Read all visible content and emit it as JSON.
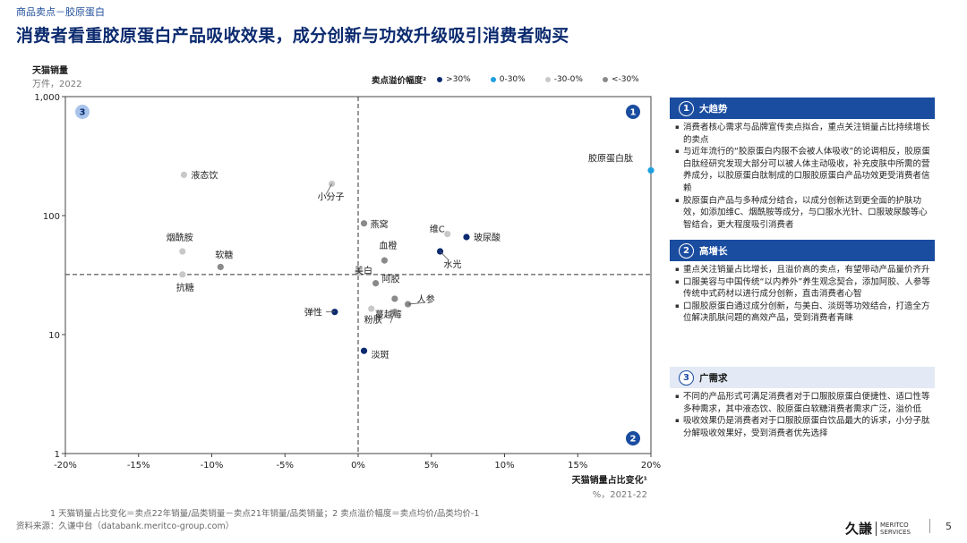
{
  "breadcrumb": "商品卖点－胶原蛋白",
  "title": "消费者看重胶原蛋白产品吸收效果，成分创新与功效升级吸引消费者购买",
  "colors": {
    ">30%": "#0b2a6f",
    "0-30%": "#1ea0e0",
    "-30-0%": "#c8c8c8",
    "<-30%": "#8a8a8a"
  },
  "chart_data": {
    "type": "scatter",
    "ylabel": "天猫销量",
    "yunit": "万件，2022",
    "xlabel": "天猫销量占比变化¹",
    "xunit": "%，2021-22",
    "xlim": [
      -20,
      20
    ],
    "ylim": [
      1,
      1000
    ],
    "yscale": "log",
    "x_ticks": [
      "-20%",
      "-15%",
      "-10%",
      "-5%",
      "0%",
      "5%",
      "10%",
      "15%",
      "20%"
    ],
    "x_tick_values": [
      -20,
      -15,
      -10,
      -5,
      0,
      5,
      10,
      15,
      20
    ],
    "y_ticks": [
      "1",
      "10",
      "100",
      "1,000"
    ],
    "y_tick_values": [
      1,
      10,
      100,
      1000
    ],
    "divider_x": 0,
    "divider_y": 32,
    "legend_title": "卖点溢价幅度²",
    "legend": [
      ">30%",
      "0-30%",
      "-30-0%",
      "<-30%"
    ],
    "quadrants": [
      "1",
      "2",
      "3"
    ],
    "points": [
      {
        "label": "胶原蛋白肽",
        "x": 20.0,
        "y": 240,
        "cat": "0-30%"
      },
      {
        "label": "液态饮",
        "x": -11.9,
        "y": 220,
        "cat": "-30-0%"
      },
      {
        "label": "小分子",
        "x": -1.8,
        "y": 185,
        "cat": "-30-0%"
      },
      {
        "label": "燕窝",
        "x": 0.4,
        "y": 86,
        "cat": "<-30%"
      },
      {
        "label": "维C",
        "x": 6.1,
        "y": 70,
        "cat": "-30-0%"
      },
      {
        "label": "玻尿酸",
        "x": 7.4,
        "y": 66,
        "cat": ">30%"
      },
      {
        "label": "烟酰胺",
        "x": -12.0,
        "y": 50,
        "cat": "-30-0%"
      },
      {
        "label": "血橙",
        "x": 1.8,
        "y": 42,
        "cat": "<-30%"
      },
      {
        "label": "水光",
        "x": 5.6,
        "y": 50,
        "cat": ">30%"
      },
      {
        "label": "软糖",
        "x": -9.4,
        "y": 37,
        "cat": "<-30%"
      },
      {
        "label": "抗糖",
        "x": -12.0,
        "y": 32,
        "cat": "-30-0%"
      },
      {
        "label": "美白",
        "x": 0.0,
        "y": 33,
        "cat": "-30-0%"
      },
      {
        "label": "阿胶",
        "x": 1.2,
        "y": 27,
        "cat": "<-30%"
      },
      {
        "label": "人参",
        "x": 3.4,
        "y": 18,
        "cat": "<-30%"
      },
      {
        "label": "弹性",
        "x": -1.6,
        "y": 15.5,
        "cat": ">30%"
      },
      {
        "label": "粉肤",
        "x": 0.9,
        "y": 16.5,
        "cat": "-30-0%"
      },
      {
        "label": "蔓越莓",
        "x": 2.5,
        "y": 20,
        "cat": "<-30%"
      },
      {
        "label": "蔓越莓b",
        "x": 2.5,
        "y": 15.5,
        "cat": "<-30%"
      },
      {
        "label": "淡斑",
        "x": 0.4,
        "y": 7.3,
        "cat": ">30%"
      }
    ]
  },
  "panels": [
    {
      "num": "1",
      "title": "大趋势",
      "bullets": [
        "消费者核心需求与品牌宣传卖点拟合，重点关注销量占比持续增长的卖点",
        "与近年流行的“胶原蛋白内服不会被人体吸收”的论调相反，胶原蛋白肽经研究发现大部分可以被人体主动吸收，补充皮肤中所需的营养成分，以胶原蛋白肽制成的口服胶原蛋白产品功效更受消费者信赖",
        "胶原蛋白产品与多种成分结合，以成分创新达到更全面的护肤功效，如添加维C、烟酰胺等成分，与口服水光针、口服玻尿酸等心智结合，更大程度吸引消费者"
      ]
    },
    {
      "num": "2",
      "title": "高增长",
      "bullets": [
        "重点关注销量占比增长，且溢价高的卖点，有望带动产品量价齐升",
        "口服美容与中国传统“以内养外”养生观念契合，添加阿胶、人参等传统中式药材以进行成分创新，直击消费者心智",
        "口服胶原蛋白通过成分创新，与美白、淡斑等功效结合，打造全方位解决肌肤问题的高效产品，受到消费者青睐"
      ]
    },
    {
      "num": "3",
      "title": "广需求",
      "bullets": [
        "不同的产品形式可满足消费者对于口服胶原蛋白便捷性、适口性等多种需求，其中液态饮、胶原蛋白软糖消费者需求广泛，溢价低",
        "吸收效果仍是消费者对于口服胶原蛋白饮品最大的诉求，小分子肽分解吸收效果好，受到消费者优先选择"
      ]
    }
  ],
  "footnote": "1  天猫销量占比变化＝卖点22年销量/品类销量－卖点21年销量/品类销量；2  卖点溢价幅度＝卖点均价/品类均价-1",
  "source": "资料来源：久谦中台（databank.meritco-group.com）",
  "logo": {
    "brand": "久謙",
    "line1": "MERITCO",
    "line2": "SERVICES"
  },
  "page_number": "5"
}
